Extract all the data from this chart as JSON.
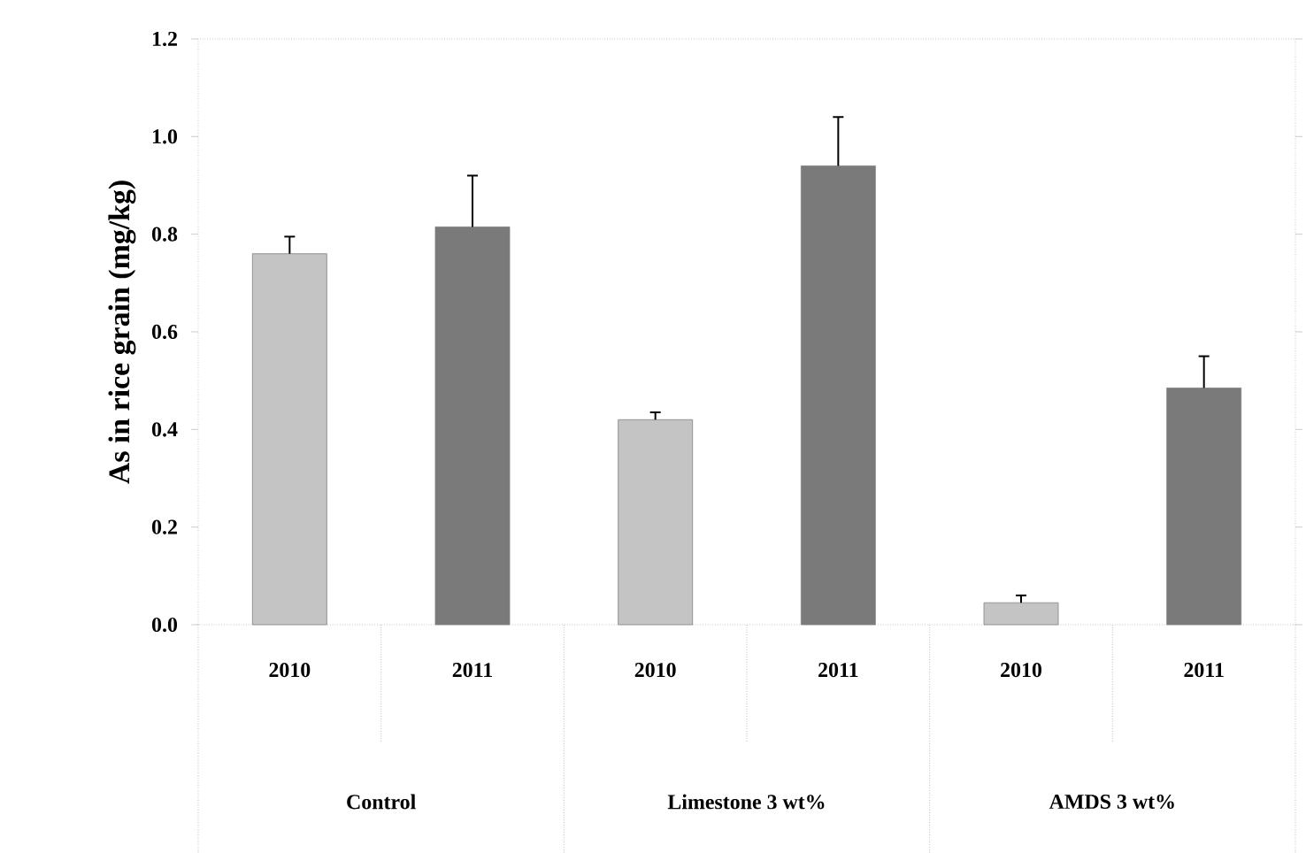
{
  "chart_data": {
    "type": "bar",
    "ylabel": "As in rice grain (mg/kg)",
    "categories": [
      "2010",
      "2011",
      "2010",
      "2011",
      "2010",
      "2011"
    ],
    "values": [
      0.76,
      0.815,
      0.42,
      0.94,
      0.045,
      0.485
    ],
    "colors": [
      "#c4c4c4",
      "#7a7a7a",
      "#c4c4c4",
      "#7a7a7a",
      "#c4c4c4",
      "#7a7a7a"
    ],
    "errors": [
      [
        0.76,
        0.795
      ],
      [
        0.815,
        0.92
      ],
      [
        0.42,
        0.435
      ],
      [
        0.94,
        1.04
      ],
      [
        0.045,
        0.06
      ],
      [
        0.485,
        0.55
      ]
    ],
    "annotations": [
      "Control",
      "Limestone 3 wt%",
      "AMDS 3 wt%"
    ],
    "ylim": [
      0,
      1.2
    ],
    "yticks": [
      {
        "value": 0,
        "label": "0.0"
      },
      0.2,
      0.4,
      0.6,
      0.8,
      {
        "value": 1,
        "label": "1.0"
      },
      1.2
    ],
    "grid": false
  }
}
